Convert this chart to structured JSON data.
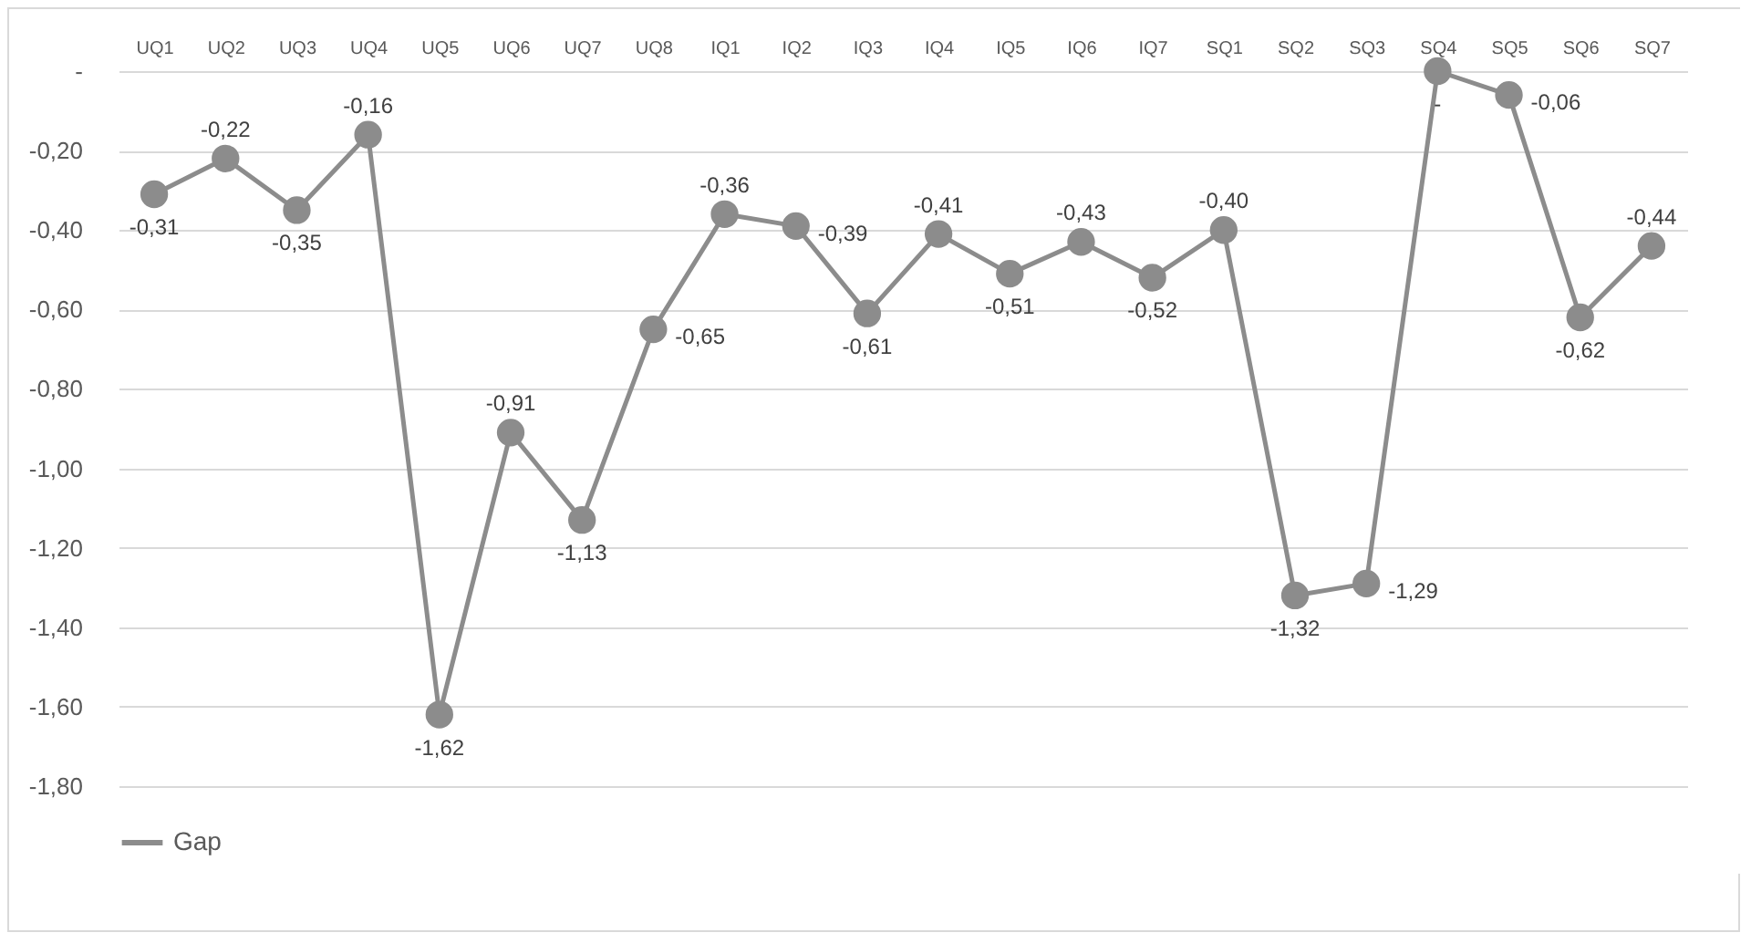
{
  "chart_data": {
    "type": "line",
    "categories": [
      "UQ1",
      "UQ2",
      "UQ3",
      "UQ4",
      "UQ5",
      "UQ6",
      "UQ7",
      "UQ8",
      "IQ1",
      "IQ2",
      "IQ3",
      "IQ4",
      "IQ5",
      "IQ6",
      "IQ7",
      "SQ1",
      "SQ2",
      "SQ3",
      "SQ4",
      "SQ5",
      "SQ6",
      "SQ7"
    ],
    "series": [
      {
        "name": "Gap",
        "color": "#8c8c8c",
        "values": [
          -0.31,
          -0.22,
          -0.35,
          -0.16,
          -1.62,
          -0.91,
          -1.13,
          -0.65,
          -0.36,
          -0.39,
          -0.61,
          -0.41,
          -0.51,
          -0.43,
          -0.52,
          -0.4,
          -1.32,
          -1.29,
          0,
          -0.06,
          -0.62,
          -0.44
        ],
        "value_labels": [
          "-0,31",
          "-0,22",
          "-0,35",
          "-0,16",
          "-1,62",
          "-0,91",
          "-1,13",
          "-0,65",
          "-0,36",
          "-0,39",
          "-0,61",
          "-0,41",
          "-0,51",
          "-0,43",
          "-0,52",
          "-0,40",
          "-1,32",
          "-1,29",
          "-",
          "-0,06",
          "-0,62",
          "-0,44"
        ]
      }
    ],
    "ylim": [
      -1.8,
      0
    ],
    "yticks": [
      {
        "value": 0,
        "label": "-"
      },
      {
        "value": -0.2,
        "label": "-0,20"
      },
      {
        "value": -0.4,
        "label": "-0,40"
      },
      {
        "value": -0.6,
        "label": "-0,60"
      },
      {
        "value": -0.8,
        "label": "-0,80"
      },
      {
        "value": -1.0,
        "label": "-1,00"
      },
      {
        "value": -1.2,
        "label": "-1,20"
      },
      {
        "value": -1.4,
        "label": "-1,40"
      },
      {
        "value": -1.6,
        "label": "-1,60"
      },
      {
        "value": -1.8,
        "label": "-1,80"
      }
    ],
    "grid": "y",
    "legend": "bottom",
    "marker": "circle",
    "line_style": "solid"
  }
}
